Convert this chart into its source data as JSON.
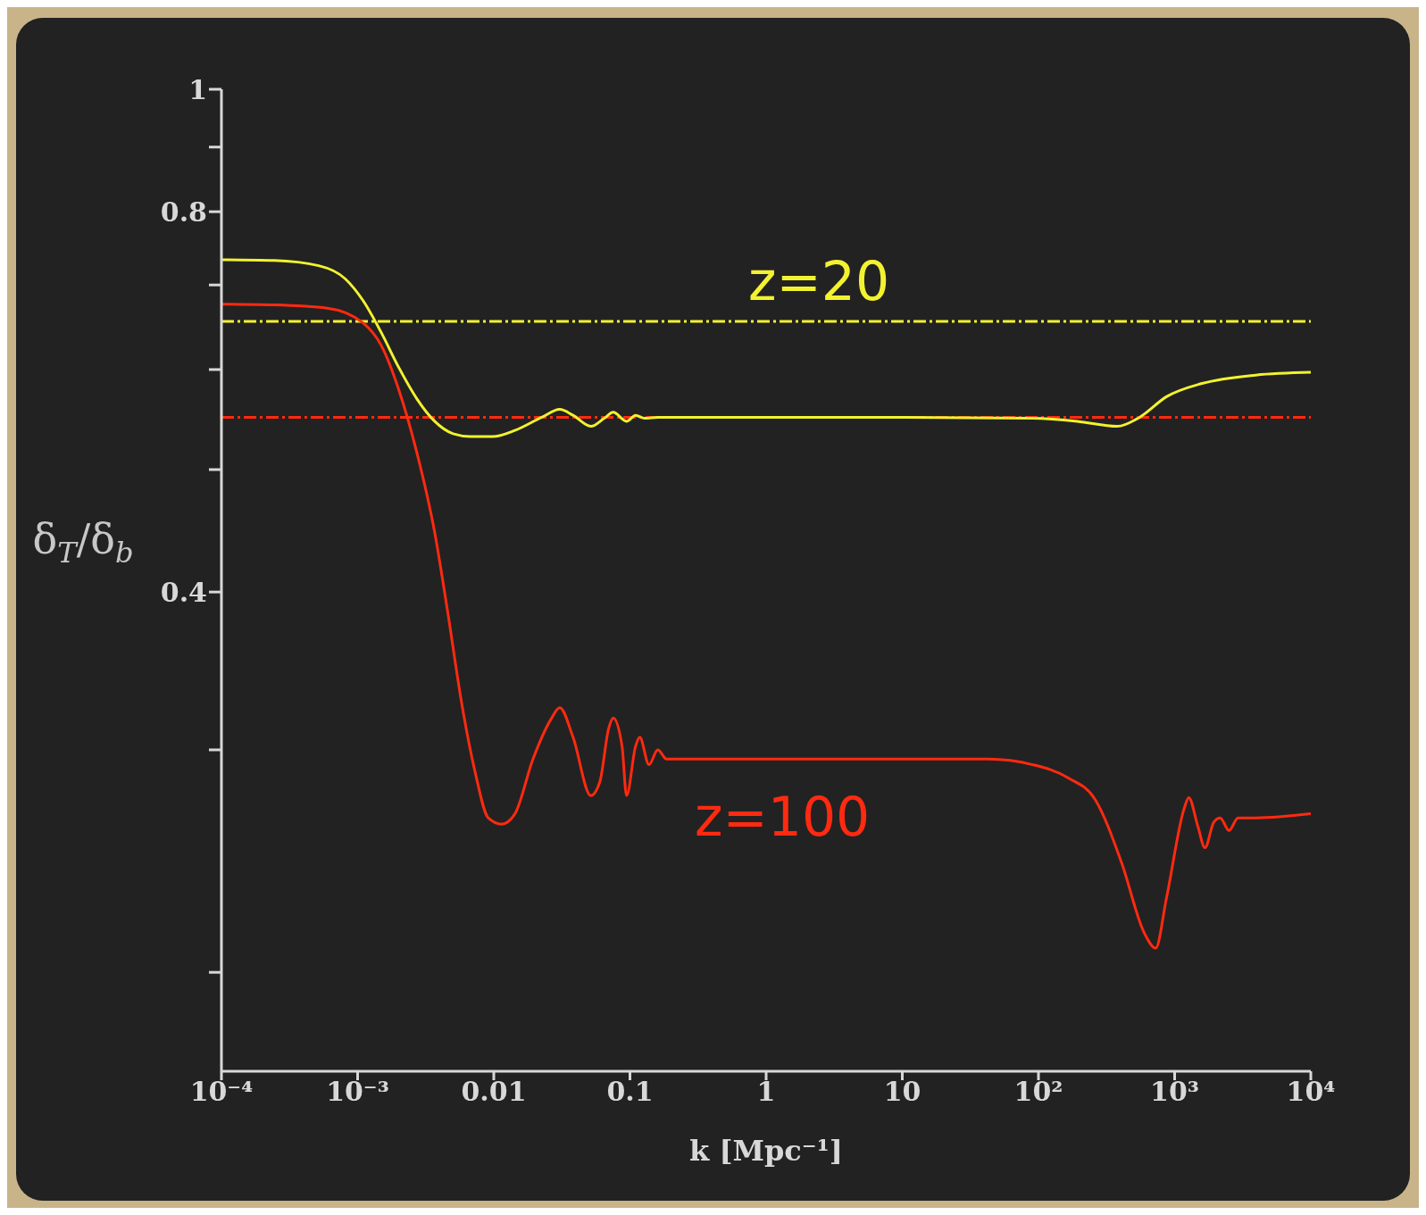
{
  "chart_data": {
    "type": "line",
    "xlabel": "k [Mpc⁻¹]",
    "ylabel": "δ$_{T}$/δ$_{b}$",
    "log": "xy",
    "xlim": [
      0.0001,
      10000
    ],
    "xticks": [
      {
        "value": 0.0001,
        "label": "10⁻⁴"
      },
      {
        "value": 0.001,
        "label": "10⁻³"
      },
      0.01,
      0.1,
      1,
      10,
      {
        "value": 100,
        "label": "10²"
      },
      {
        "value": 1000,
        "label": "10³"
      },
      {
        "value": 10000,
        "label": "10⁴"
      }
    ],
    "ylim": [
      0.167,
      1
    ],
    "yticks": [
      {
        "value": 0.2,
        "label": null
      },
      {
        "value": 0.3,
        "label": null
      },
      0.4,
      {
        "value": 0.5,
        "label": null
      },
      {
        "value": 0.6,
        "label": null
      },
      {
        "value": 0.7,
        "label": null
      },
      0.8,
      {
        "value": 0.9,
        "label": null
      },
      1
    ],
    "grid": false,
    "legend": false,
    "line_style": "solid",
    "series": [
      {
        "color": "#f2f230",
        "x": [
          0.0001,
          0.000244,
          0.000518,
          0.00081,
          0.0011,
          0.00149,
          0.00201,
          0.00272,
          0.00368,
          0.00498,
          0.00673,
          0.0098,
          0.0143,
          0.0225,
          0.0305,
          0.0382,
          0.0516,
          0.0647,
          0.0753,
          0.0944,
          0.11,
          0.128,
          0.16,
          0.34,
          9.4,
          90.6,
          193,
          379,
          553,
          871,
          1590,
          3940,
          10000
        ],
        "values": [
          0.733,
          0.732,
          0.725,
          0.708,
          0.68,
          0.642,
          0.602,
          0.569,
          0.546,
          0.534,
          0.531,
          0.531,
          0.537,
          0.55,
          0.558,
          0.552,
          0.541,
          0.549,
          0.555,
          0.546,
          0.552,
          0.549,
          0.55,
          0.55,
          0.55,
          0.549,
          0.546,
          0.541,
          0.55,
          0.571,
          0.585,
          0.594,
          0.597
        ]
      },
      {
        "color": "#ff2a10",
        "x": [
          0.0001,
          0.000244,
          0.0006,
          0.0011,
          0.00149,
          0.00201,
          0.00272,
          0.00368,
          0.0046,
          0.0058,
          0.0073,
          0.0091,
          0.0114,
          0.0143,
          0.0194,
          0.0262,
          0.0305,
          0.0382,
          0.0516,
          0.0601,
          0.0698,
          0.0753,
          0.0875,
          0.0944,
          0.11,
          0.118,
          0.138,
          0.16,
          0.186,
          0.252,
          0.46,
          42.6,
          90.6,
          166,
          261,
          409,
          597,
          726,
          871,
          1180,
          1270,
          1480,
          1670,
          1940,
          2160,
          2510,
          2920,
          3940,
          10000
        ],
        "values": [
          0.676,
          0.675,
          0.671,
          0.653,
          0.627,
          0.578,
          0.516,
          0.446,
          0.385,
          0.327,
          0.288,
          0.265,
          0.262,
          0.267,
          0.295,
          0.317,
          0.324,
          0.307,
          0.276,
          0.283,
          0.312,
          0.318,
          0.302,
          0.276,
          0.302,
          0.307,
          0.292,
          0.3,
          0.295,
          0.295,
          0.295,
          0.295,
          0.292,
          0.285,
          0.274,
          0.244,
          0.215,
          0.209,
          0.229,
          0.27,
          0.275,
          0.261,
          0.251,
          0.263,
          0.265,
          0.259,
          0.265,
          0.265,
          0.267
        ]
      }
    ],
    "ref_lines": [
      {
        "axis": "y",
        "value": 0.655,
        "color": "#f2f230",
        "line_style": "dashed"
      },
      {
        "axis": "y",
        "value": 0.55,
        "color": "#ff2a10",
        "line_style": "dashed"
      }
    ],
    "annotations": [
      "z=20",
      "z=100"
    ]
  }
}
